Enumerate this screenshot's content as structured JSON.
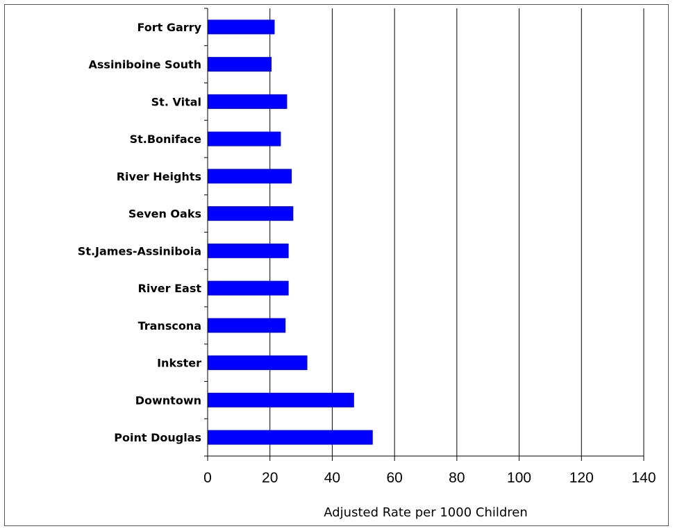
{
  "chart_data": {
    "type": "bar",
    "orientation": "horizontal",
    "categories": [
      "Fort Garry",
      "Assiniboine South",
      "St. Vital",
      "St.Boniface",
      "River Heights",
      "Seven Oaks",
      "St.James-Assiniboia",
      "River East",
      "Transcona",
      "Inkster",
      "Downtown",
      "Point Douglas"
    ],
    "values": [
      21.5,
      20.5,
      25.5,
      23.5,
      27,
      27.5,
      26,
      26,
      25,
      32,
      47,
      53
    ],
    "title": "",
    "xlabel": "Adjusted Rate per 1000 Children",
    "ylabel": "",
    "xlim": [
      0,
      140
    ],
    "xticks": [
      "0",
      "20",
      "40",
      "60",
      "80",
      "100",
      "120",
      "140"
    ],
    "grid": "vertical",
    "legend": "none",
    "bar_color": "#0000ff"
  }
}
